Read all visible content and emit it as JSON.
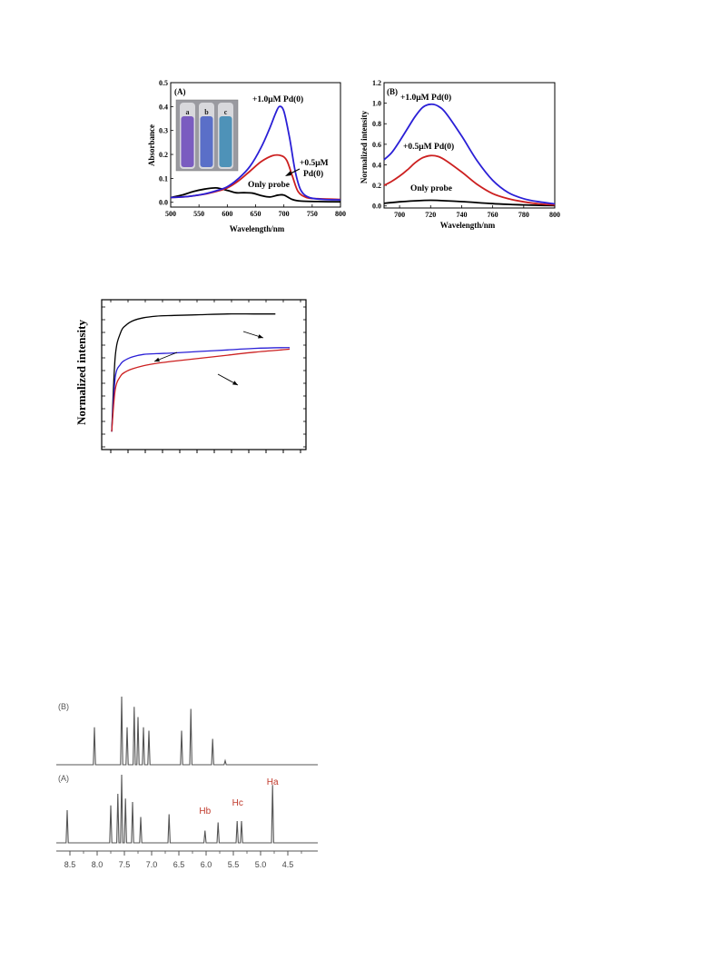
{
  "colors": {
    "black": "#000000",
    "red": "#cc2020",
    "blue": "#2a1fd6",
    "nmr": "#555555",
    "peak_label": "#c0392b"
  },
  "chart_data": [
    {
      "type": "line",
      "panel_label": "(A)",
      "xlabel": "Wavelength/nm",
      "ylabel": "Absorbance",
      "xlim": [
        500,
        800
      ],
      "ylim": [
        -0.02,
        0.5
      ],
      "xticks": [
        500,
        550,
        600,
        650,
        700,
        750,
        800
      ],
      "yticks": [
        0.0,
        0.1,
        0.2,
        0.3,
        0.4,
        0.5
      ],
      "xtick_labels": [
        "500",
        "550",
        "600",
        "650",
        "700",
        "750",
        "800"
      ],
      "ytick_labels": [
        "0.0",
        "0.1",
        "0.2",
        "0.3",
        "0.4",
        "0.5"
      ],
      "inset": {
        "labels": [
          "a",
          "b",
          "c"
        ],
        "colors": [
          "#7a5cc0",
          "#5a6fc8",
          "#4e92b8"
        ]
      },
      "annotations": [
        "+1.0μM Pd(0)",
        "+0.5μM",
        "Pd(0)",
        "Only probe"
      ],
      "series": [
        {
          "color": "#000000",
          "x": [
            500,
            520,
            540,
            560,
            580,
            600,
            615,
            630,
            645,
            660,
            675,
            690,
            700,
            715,
            730,
            760,
            800
          ],
          "y": [
            0.02,
            0.03,
            0.045,
            0.055,
            0.06,
            0.05,
            0.04,
            0.04,
            0.038,
            0.028,
            0.022,
            0.03,
            0.03,
            0.012,
            0.005,
            0.003,
            0.002
          ]
        },
        {
          "color": "#cc2020",
          "x": [
            500,
            520,
            540,
            560,
            580,
            600,
            620,
            640,
            660,
            680,
            695,
            705,
            715,
            725,
            740,
            760,
            800
          ],
          "y": [
            0.02,
            0.022,
            0.027,
            0.034,
            0.045,
            0.06,
            0.09,
            0.13,
            0.17,
            0.195,
            0.195,
            0.175,
            0.11,
            0.045,
            0.02,
            0.015,
            0.012
          ]
        },
        {
          "color": "#2a1fd6",
          "x": [
            500,
            520,
            540,
            560,
            580,
            600,
            620,
            640,
            660,
            675,
            685,
            692,
            700,
            710,
            720,
            730,
            745,
            770,
            800
          ],
          "y": [
            0.02,
            0.022,
            0.027,
            0.035,
            0.048,
            0.065,
            0.1,
            0.15,
            0.23,
            0.31,
            0.37,
            0.4,
            0.38,
            0.27,
            0.13,
            0.05,
            0.02,
            0.012,
            0.01
          ]
        }
      ]
    },
    {
      "type": "line",
      "panel_label": "(B)",
      "xlabel": "Wavelength/nm",
      "ylabel": "Normalized intensity",
      "xlim": [
        690,
        800
      ],
      "ylim": [
        -0.02,
        1.2
      ],
      "xticks": [
        700,
        720,
        740,
        760,
        780,
        800
      ],
      "yticks": [
        0.0,
        0.2,
        0.4,
        0.6,
        0.8,
        1.0,
        1.2
      ],
      "xtick_labels": [
        "700",
        "720",
        "740",
        "760",
        "780",
        "800"
      ],
      "ytick_labels": [
        "0.0",
        "0.2",
        "0.4",
        "0.6",
        "0.8",
        "1.0",
        "1.2"
      ],
      "annotations": [
        "+1.0μM Pd(0)",
        "+0.5μM Pd(0)",
        "Only probe"
      ],
      "series": [
        {
          "color": "#000000",
          "x": [
            690,
            700,
            710,
            720,
            730,
            740,
            750,
            760,
            770,
            780,
            790,
            800
          ],
          "y": [
            0.025,
            0.04,
            0.05,
            0.055,
            0.05,
            0.042,
            0.032,
            0.022,
            0.015,
            0.01,
            0.006,
            0.004
          ]
        },
        {
          "color": "#cc2020",
          "x": [
            690,
            695,
            700,
            705,
            710,
            715,
            720,
            725,
            730,
            740,
            750,
            760,
            770,
            780,
            790,
            800
          ],
          "y": [
            0.2,
            0.24,
            0.29,
            0.35,
            0.42,
            0.47,
            0.49,
            0.48,
            0.44,
            0.33,
            0.21,
            0.12,
            0.07,
            0.04,
            0.02,
            0.01
          ]
        },
        {
          "color": "#2a1fd6",
          "x": [
            690,
            695,
            700,
            705,
            710,
            715,
            720,
            725,
            730,
            740,
            750,
            760,
            770,
            780,
            790,
            800
          ],
          "y": [
            0.45,
            0.52,
            0.63,
            0.75,
            0.87,
            0.96,
            0.99,
            0.97,
            0.9,
            0.68,
            0.44,
            0.25,
            0.13,
            0.07,
            0.04,
            0.02
          ]
        }
      ]
    },
    {
      "type": "line",
      "ylabel": "Normalized intensity",
      "series": [
        {
          "color": "#000000",
          "x": [
            0,
            0.02,
            0.05,
            0.08,
            0.12,
            0.18,
            0.25,
            0.35,
            0.5,
            0.65,
            0.8,
            0.92
          ],
          "y": [
            0.12,
            0.62,
            0.78,
            0.83,
            0.86,
            0.88,
            0.89,
            0.895,
            0.9,
            0.905,
            0.905,
            0.905
          ]
        },
        {
          "color": "#2a1fd6",
          "x": [
            0,
            0.02,
            0.05,
            0.08,
            0.12,
            0.18,
            0.25,
            0.35,
            0.5,
            0.65,
            0.8,
            0.95,
            1.0
          ],
          "y": [
            0.12,
            0.48,
            0.57,
            0.6,
            0.62,
            0.635,
            0.64,
            0.645,
            0.655,
            0.665,
            0.675,
            0.68,
            0.68
          ]
        },
        {
          "color": "#cc2020",
          "x": [
            0,
            0.02,
            0.05,
            0.08,
            0.12,
            0.18,
            0.25,
            0.35,
            0.5,
            0.65,
            0.8,
            0.95,
            1.0
          ],
          "y": [
            0.12,
            0.4,
            0.49,
            0.52,
            0.54,
            0.56,
            0.575,
            0.59,
            0.61,
            0.63,
            0.65,
            0.665,
            0.67
          ]
        }
      ]
    },
    {
      "type": "line",
      "kind": "nmr",
      "xlim": [
        8.7,
        4.2
      ],
      "xticks": [
        8.5,
        8.0,
        7.5,
        7.0,
        6.5,
        6.0,
        5.5,
        5.0,
        4.5
      ],
      "xtick_labels": [
        "8.5",
        "8.0",
        "7.5",
        "7.0",
        "6.5",
        "6.0",
        "5.5",
        "5.0",
        "4.5"
      ],
      "spectra": [
        {
          "label": "(B)",
          "peaks": [
            {
              "ppm": 8.05,
              "h": 0.55
            },
            {
              "ppm": 7.55,
              "h": 1.0
            },
            {
              "ppm": 7.45,
              "h": 0.55
            },
            {
              "ppm": 7.32,
              "h": 0.85
            },
            {
              "ppm": 7.25,
              "h": 0.7
            },
            {
              "ppm": 7.15,
              "h": 0.55
            },
            {
              "ppm": 7.05,
              "h": 0.5
            },
            {
              "ppm": 6.45,
              "h": 0.5
            },
            {
              "ppm": 6.28,
              "h": 0.82
            },
            {
              "ppm": 5.88,
              "h": 0.38
            },
            {
              "ppm": 5.65,
              "h": 0.06
            }
          ]
        },
        {
          "label": "(A)",
          "peak_labels": [
            {
              "text": "Hb",
              "ppm": 6.02
            },
            {
              "text": "Hc",
              "ppm": 5.42
            },
            {
              "text": "Ha",
              "ppm": 4.78
            }
          ],
          "peaks": [
            {
              "ppm": 8.55,
              "h": 0.48
            },
            {
              "ppm": 7.75,
              "h": 0.55
            },
            {
              "ppm": 7.62,
              "h": 0.72
            },
            {
              "ppm": 7.55,
              "h": 1.0
            },
            {
              "ppm": 7.48,
              "h": 0.65
            },
            {
              "ppm": 7.35,
              "h": 0.6
            },
            {
              "ppm": 7.2,
              "h": 0.38
            },
            {
              "ppm": 6.68,
              "h": 0.42
            },
            {
              "ppm": 6.02,
              "h": 0.18
            },
            {
              "ppm": 5.78,
              "h": 0.3
            },
            {
              "ppm": 5.43,
              "h": 0.32
            },
            {
              "ppm": 5.35,
              "h": 0.32
            },
            {
              "ppm": 4.78,
              "h": 0.85
            }
          ]
        }
      ]
    }
  ]
}
